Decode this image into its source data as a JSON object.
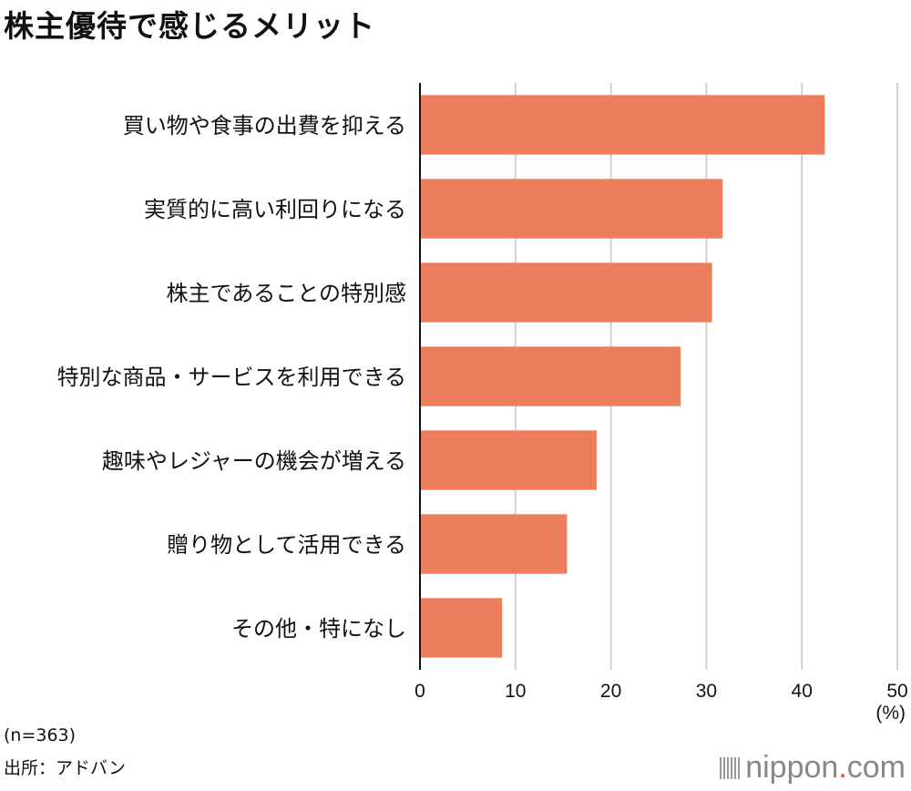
{
  "title": "株主優待で感じるメリット",
  "footnote_n": "(n=363)",
  "source": "出所：アドバン",
  "brand": {
    "name": "nippon",
    "dot": ".",
    "tld": "com",
    "icon": "sound-bars-icon"
  },
  "chart_data": {
    "type": "bar",
    "orientation": "horizontal",
    "title": "株主優待で感じるメリット",
    "categories": [
      "買い物や食事の出費を抑える",
      "実質的に高い利回りになる",
      "株主であることの特別感",
      "特別な商品・サービスを利用できる",
      "趣味やレジャーの機会が増える",
      "贈り物として活用できる",
      "その他・特になし"
    ],
    "values": [
      42.4,
      31.7,
      30.6,
      27.3,
      18.5,
      15.4,
      8.6
    ],
    "xlim": [
      0,
      50
    ],
    "xticks": [
      "0",
      "10",
      "20",
      "30",
      "40",
      "50"
    ],
    "unit_label": "(%)",
    "grid": true,
    "colors": {
      "bar": "#EC7E5E",
      "grid": "#d0d0d0",
      "axis": "#111111"
    }
  }
}
